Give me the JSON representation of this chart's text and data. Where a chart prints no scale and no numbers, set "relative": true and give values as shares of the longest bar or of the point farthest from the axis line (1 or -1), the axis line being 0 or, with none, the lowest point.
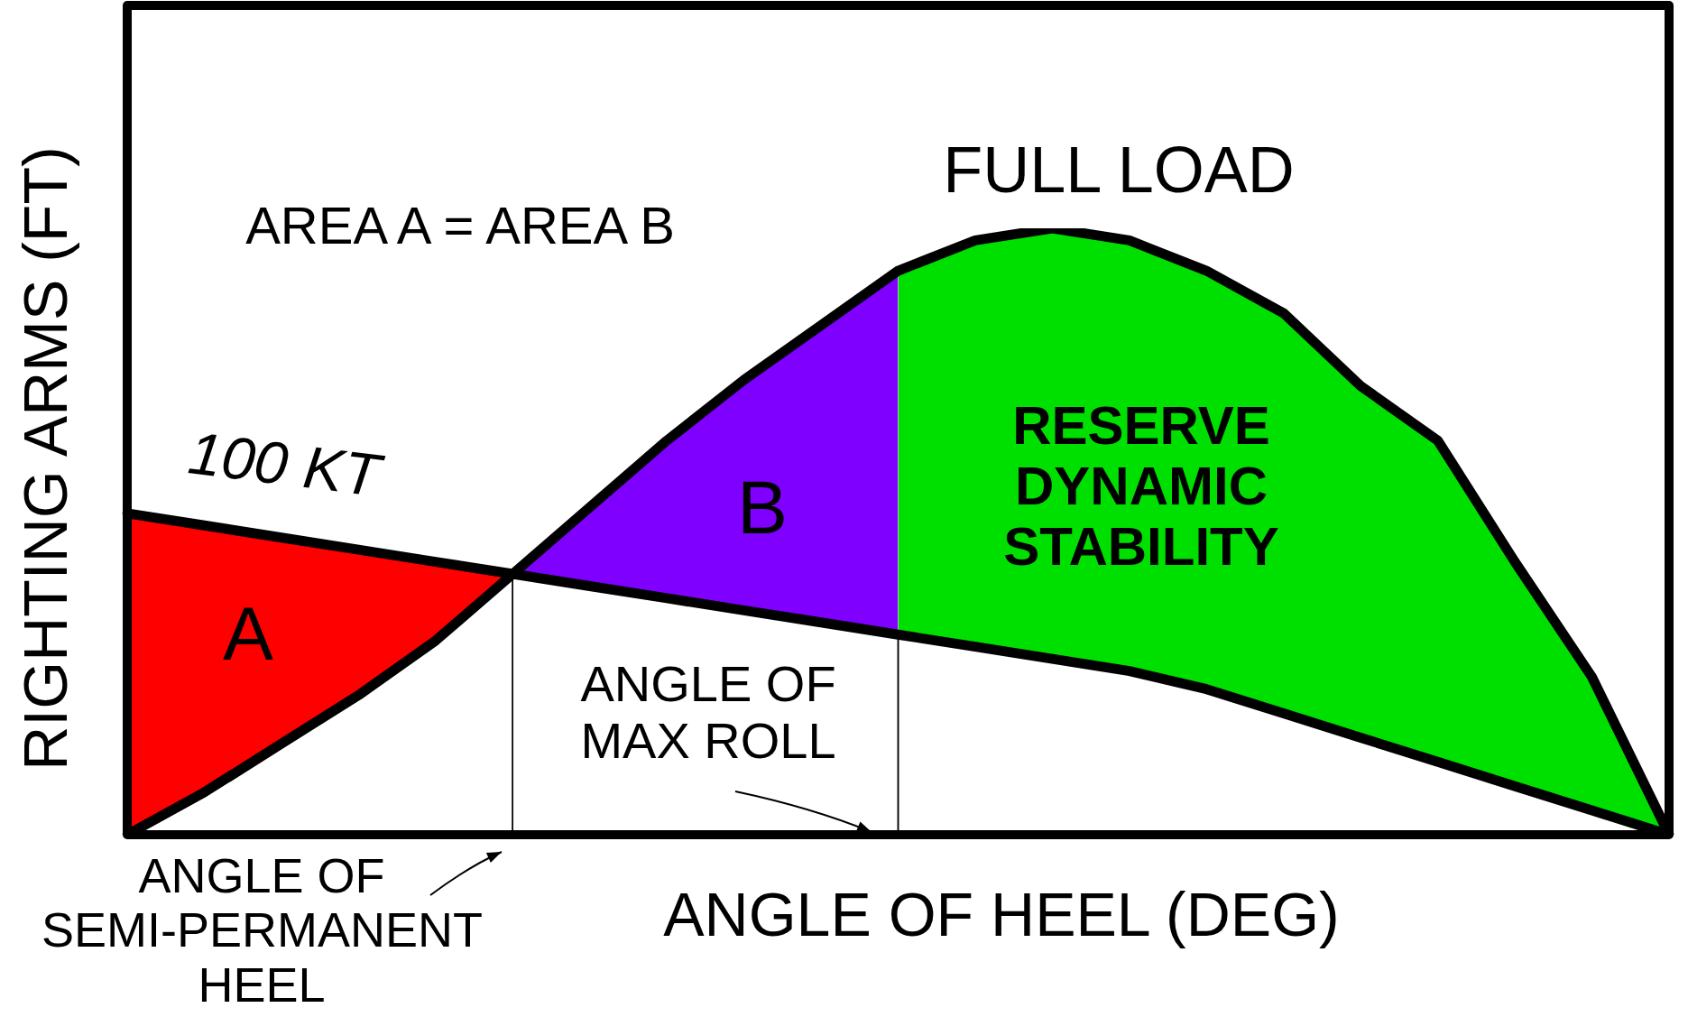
{
  "chart_data": {
    "type": "line",
    "relative": true,
    "xlabel": "ANGLE OF HEEL (DEG)",
    "ylabel": "RIGHTING ARMS (FT)",
    "legend": false,
    "marker": "none",
    "line_style": "solid",
    "categories": [
      null,
      null,
      null,
      null,
      null,
      null,
      null,
      null,
      null,
      null,
      null,
      null,
      null,
      null,
      null,
      null,
      null,
      null,
      null,
      null,
      null
    ],
    "series": [
      {
        "name": "FULL LOAD",
        "color": "#000000",
        "values": [
          0,
          0.07,
          0.15,
          0.23,
          0.32,
          0.43,
          0.54,
          0.65,
          0.75,
          0.84,
          0.93,
          0.98,
          1,
          0.98,
          0.93,
          0.86,
          0.74,
          0.65,
          0.45,
          0.26,
          0
        ]
      },
      {
        "name": "100 KT",
        "color": "#000000",
        "values": [
          0.53,
          0.51,
          0.49,
          0.47,
          0.45,
          0.43,
          0.41,
          0.39,
          0.37,
          0.35,
          0.33,
          0.31,
          0.29,
          0.27,
          0.24,
          0.2,
          0.16,
          0.12,
          0.08,
          0.04,
          0
        ]
      },
      {
        "type": "area",
        "color": "#ff0000",
        "values": [
          0.53,
          0.51,
          0.49,
          0.47,
          0.45,
          0.43,
          null,
          null,
          null,
          null,
          null,
          null,
          null,
          null,
          null,
          null,
          null,
          null,
          null,
          null,
          null
        ]
      },
      {
        "type": "area",
        "color": "#7f00ff",
        "values": [
          null,
          null,
          null,
          null,
          null,
          0.43,
          0.54,
          0.65,
          0.75,
          0.84,
          0.93,
          null,
          null,
          null,
          null,
          null,
          null,
          null,
          null,
          null,
          null
        ]
      },
      {
        "type": "area",
        "color": "#00e000",
        "values": [
          null,
          null,
          null,
          null,
          null,
          null,
          null,
          null,
          null,
          null,
          0.93,
          0.98,
          1,
          0.98,
          0.93,
          0.86,
          0.74,
          0.65,
          0.45,
          0.26,
          0
        ]
      }
    ],
    "annotations": [
      "AREA A = AREA B",
      "A",
      "B",
      "RESERVE DYNAMIC STABILITY",
      "ANGLE OF MAX ROLL",
      "ANGLE OF SEMI-PERMANENT HEEL"
    ]
  }
}
